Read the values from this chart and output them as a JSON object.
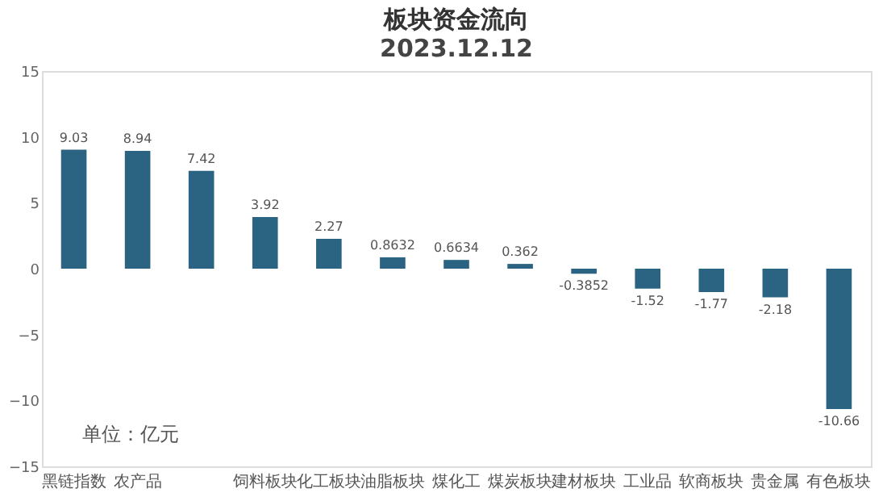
{
  "chart_data": {
    "type": "bar",
    "title": "板块资金流向",
    "subtitle": "2023.12.12",
    "categories": [
      "黑链指数",
      "农产品",
      null,
      "饲料板块",
      "化工板块",
      "油脂板块",
      "煤化工",
      "煤炭板块",
      "建材板块",
      "工业品",
      "软商板块",
      "贵金属",
      "有色板块"
    ],
    "values": [
      9.03,
      8.94,
      7.42,
      3.92,
      2.27,
      0.8632,
      0.6634,
      0.362,
      -0.3852,
      -1.52,
      -1.77,
      -2.18,
      -10.66
    ],
    "color": "#2b6482",
    "ylim": [
      -15,
      15
    ],
    "yticks": [
      -15,
      -10,
      -5,
      0,
      5,
      10,
      15
    ],
    "data_labels": true,
    "grid": false,
    "annotations": [
      "单位：亿元"
    ]
  }
}
